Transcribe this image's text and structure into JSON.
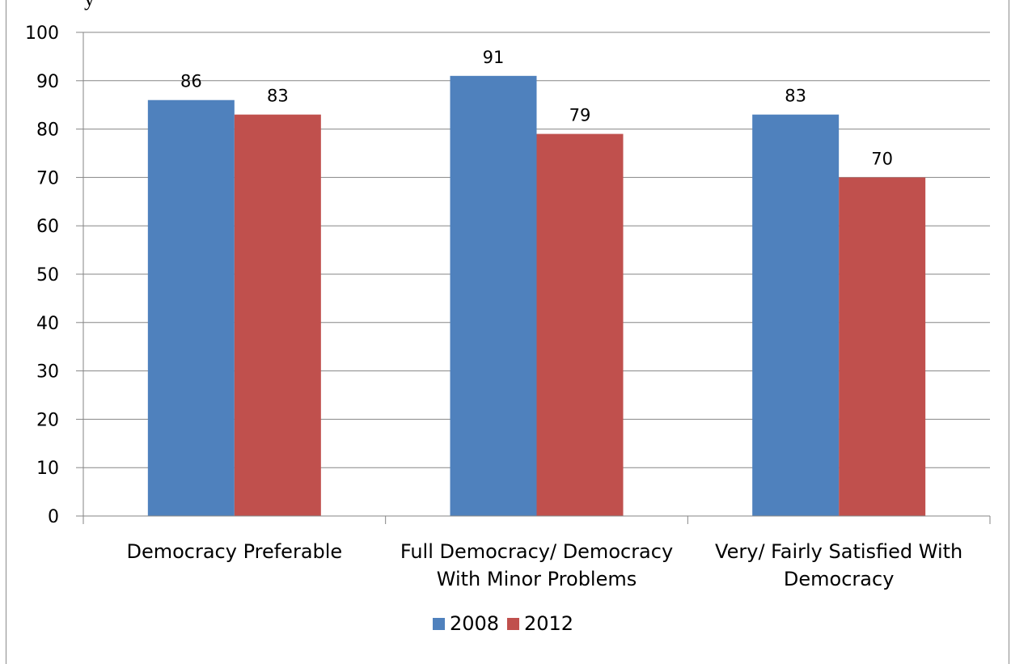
{
  "clipped_top_text": "y",
  "chart_data": {
    "type": "bar",
    "title": "",
    "xlabel": "",
    "ylabel": "",
    "categories": [
      [
        "Democracy Preferable"
      ],
      [
        "Full Democracy/ Democracy",
        "With Minor Problems"
      ],
      [
        "Very/ Fairly Satisfied With",
        "Democracy"
      ]
    ],
    "series": [
      {
        "name": "2008",
        "values": [
          86,
          91,
          83
        ],
        "color": "#4f81bd"
      },
      {
        "name": "2012",
        "values": [
          83,
          79,
          70
        ],
        "color": "#c0504d"
      }
    ],
    "ylim": [
      0,
      100
    ],
    "ytick_step": 10,
    "grid": true,
    "legend_position": "bottom",
    "data_labels": true
  }
}
